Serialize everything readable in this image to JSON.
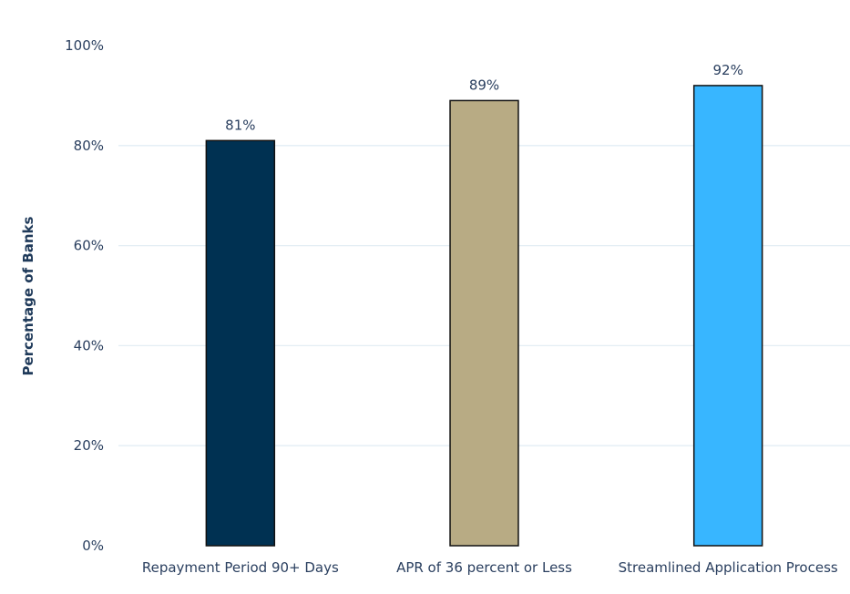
{
  "chart_data": {
    "type": "bar",
    "categories": [
      "Repayment Period 90+ Days",
      "APR of 36 percent or Less",
      "Streamlined Application Process"
    ],
    "values": [
      81,
      89,
      92
    ],
    "data_labels": [
      "81%",
      "89%",
      "92%"
    ],
    "colors": [
      "#003152",
      "#b8ab84",
      "#38b6ff"
    ],
    "title": "",
    "xlabel": "",
    "ylabel": "Percentage of Banks",
    "ylim": [
      0,
      100
    ],
    "y_ticks": [
      0,
      20,
      40,
      60,
      80,
      100
    ],
    "y_tick_labels": [
      "0%",
      "20%",
      "40%",
      "60%",
      "80%",
      "100%"
    ],
    "grid": true,
    "legend": "none"
  }
}
